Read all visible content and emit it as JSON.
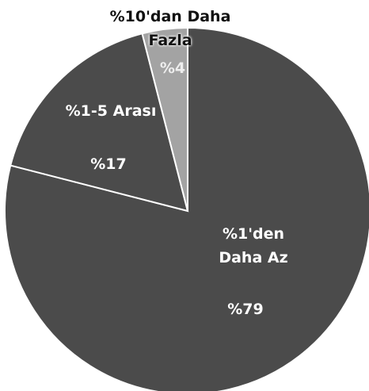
{
  "chart_data": {
    "type": "pie",
    "categories": [
      "%1'den Daha Az",
      "%1-5 Arası",
      "%10'dan Daha Fazla"
    ],
    "values": [
      79,
      17,
      4
    ],
    "value_labels": [
      "%79",
      "%17",
      "%4"
    ],
    "colors": [
      "#4b4b4b",
      "#4b4b4b",
      "#a3a3a3"
    ]
  }
}
